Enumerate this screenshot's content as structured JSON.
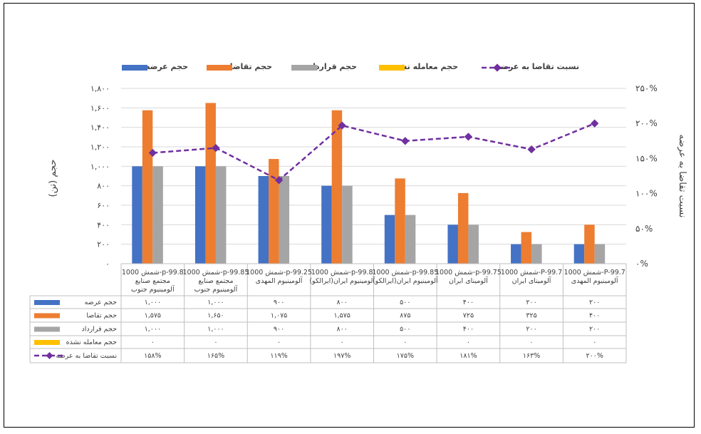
{
  "chart_data": {
    "type": "bar",
    "legend_position": "top",
    "categories": [
      [
        "1000 شمش-p-99.8",
        "مجتمع صنایع",
        "آلومینیوم جنوب"
      ],
      [
        "1000 شمش-p-99.85",
        "مجتمع صنایع",
        "آلومینیوم جنوب"
      ],
      [
        "1000 شمش-p-99.25",
        "آلومینیوم المهدی"
      ],
      [
        "1000 شمش-p-99.8",
        "آلومینیوم ایران(ایرالکو)"
      ],
      [
        "1000 شمش-p-99.85",
        "آلومینیوم ایران(ایرالکو)"
      ],
      [
        "1000 شمش-p-99.75",
        "آلومینای ایران"
      ],
      [
        "1000 شمش-P-99.7",
        "آلومینای ایران"
      ],
      [
        "1000 شمش-P-99.7",
        "آلومینیوم المهدی"
      ]
    ],
    "series": [
      {
        "name": "حجم عرضه",
        "kind": "bar",
        "axis": "left",
        "color": "#4472C4",
        "values": [
          1000,
          1000,
          900,
          800,
          500,
          400,
          200,
          200
        ]
      },
      {
        "name": "حجم تقاضا",
        "kind": "bar",
        "axis": "left",
        "color": "#ED7D31",
        "values": [
          1575,
          1650,
          1075,
          1575,
          875,
          725,
          325,
          400
        ]
      },
      {
        "name": "حجم قرارداد",
        "kind": "bar",
        "axis": "left",
        "color": "#A5A5A5",
        "values": [
          1000,
          1000,
          900,
          800,
          500,
          400,
          200,
          200
        ]
      },
      {
        "name": "حجم معامله نشده",
        "kind": "bar",
        "axis": "left",
        "color": "#FFC000",
        "values": [
          0,
          0,
          0,
          0,
          0,
          0,
          0,
          0
        ]
      },
      {
        "name": "نسبت تقاضا به عرضه",
        "kind": "line",
        "axis": "right",
        "color": "#7030A0",
        "values": [
          158,
          165,
          119,
          197,
          175,
          181,
          163,
          200
        ]
      }
    ],
    "table_rows": [
      [
        "۱,۰۰۰",
        "۱,۰۰۰",
        "۹۰۰",
        "۸۰۰",
        "۵۰۰",
        "۴۰۰",
        "۲۰۰",
        "۲۰۰"
      ],
      [
        "۱,۵۷۵",
        "۱,۶۵۰",
        "۱,۰۷۵",
        "۱,۵۷۵",
        "۸۷۵",
        "۷۲۵",
        "۳۲۵",
        "۴۰۰"
      ],
      [
        "۱,۰۰۰",
        "۱,۰۰۰",
        "۹۰۰",
        "۸۰۰",
        "۵۰۰",
        "۴۰۰",
        "۲۰۰",
        "۲۰۰"
      ],
      [
        "۰",
        "۰",
        "۰",
        "۰",
        "۰",
        "۰",
        "۰",
        "۰"
      ],
      [
        "۱۵۸%",
        "۱۶۵%",
        "۱۱۹%",
        "۱۹۷%",
        "۱۷۵%",
        "۱۸۱%",
        "۱۶۳%",
        "۲۰۰%"
      ]
    ],
    "y_left": {
      "label": "حجم (تن)",
      "range": [
        0,
        1800
      ],
      "ticks": [
        0,
        200,
        400,
        600,
        800,
        1000,
        1200,
        1400,
        1600,
        1800
      ],
      "tick_labels": [
        "۰",
        "۲۰۰",
        "۴۰۰",
        "۶۰۰",
        "۸۰۰",
        "۱,۰۰۰",
        "۱,۲۰۰",
        "۱,۴۰۰",
        "۱,۶۰۰",
        "۱,۸۰۰"
      ]
    },
    "y_right": {
      "label": "نسبت تقاضا به عرضه",
      "range": [
        0,
        250
      ],
      "ticks": [
        0,
        50,
        100,
        150,
        200,
        250
      ],
      "tick_labels": [
        "۰%",
        "۵۰%",
        "۱۰۰%",
        "۱۵۰%",
        "۲۰۰%",
        "۲۵۰%"
      ]
    },
    "grid": true
  }
}
